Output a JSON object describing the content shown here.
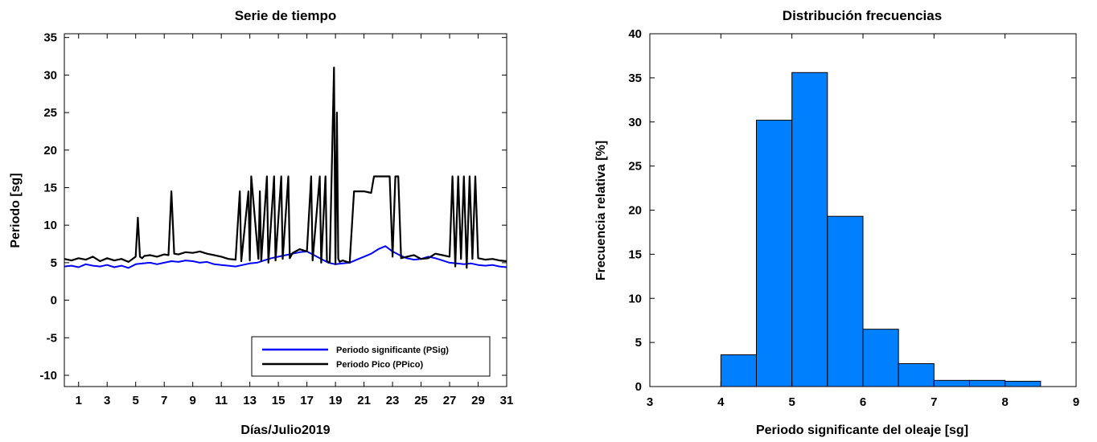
{
  "chart_data": [
    {
      "type": "line",
      "title": "Serie de tiempo",
      "xlabel": "Días/Julio2019",
      "ylabel": "Periodo [sg]",
      "xlim": [
        0,
        31
      ],
      "ylim": [
        -11.5,
        35.5
      ],
      "xticks": [
        1,
        3,
        5,
        7,
        9,
        11,
        13,
        15,
        17,
        19,
        21,
        23,
        25,
        27,
        29,
        31
      ],
      "xtick_labels": [
        "1",
        "3",
        "5",
        "7",
        "9",
        "11",
        "13",
        "15",
        "17",
        "19",
        "21",
        "23",
        "25",
        "27",
        "29",
        "31"
      ],
      "yticks": [
        -10,
        -5,
        0,
        5,
        10,
        15,
        20,
        25,
        30,
        35
      ],
      "ytick_labels": [
        "-10",
        "-5",
        "0",
        "5",
        "10",
        "15",
        "20",
        "25",
        "30",
        "35"
      ],
      "grid": false,
      "legend": "bottom-right",
      "series": [
        {
          "name": "Periodo significante (PSig)",
          "color": "#0000ff",
          "x": [
            0,
            0.5,
            1,
            1.5,
            2,
            2.5,
            3,
            3.5,
            4,
            4.5,
            5,
            5.5,
            6,
            6.5,
            7,
            7.5,
            8,
            8.5,
            9,
            9.5,
            10,
            10.5,
            11,
            11.5,
            12,
            12.5,
            13,
            13.5,
            14,
            14.5,
            15,
            15.5,
            16,
            16.5,
            17,
            17.5,
            18,
            18.5,
            19,
            19.5,
            20,
            20.5,
            21,
            21.5,
            22,
            22.5,
            23,
            23.5,
            24,
            24.5,
            25,
            25.5,
            26,
            26.5,
            27,
            27.5,
            28,
            28.5,
            29,
            29.5,
            30,
            30.5,
            31
          ],
          "y": [
            4.5,
            4.6,
            4.4,
            4.8,
            4.6,
            4.5,
            4.7,
            4.4,
            4.6,
            4.3,
            4.8,
            4.9,
            5.0,
            4.8,
            5.0,
            5.2,
            5.1,
            5.3,
            5.2,
            5.0,
            5.1,
            4.8,
            4.7,
            4.6,
            4.5,
            4.7,
            4.9,
            5.0,
            5.3,
            5.6,
            5.8,
            6.0,
            6.2,
            6.4,
            6.5,
            6.0,
            5.5,
            5.0,
            4.8,
            4.9,
            5.0,
            5.4,
            5.8,
            6.2,
            6.8,
            7.2,
            6.5,
            6.0,
            5.6,
            5.4,
            5.5,
            5.8,
            5.6,
            5.3,
            5.0,
            4.9,
            4.8,
            4.9,
            4.7,
            4.6,
            4.7,
            4.5,
            4.4
          ]
        },
        {
          "name": "Periodo Pico (PPico)",
          "color": "#000000",
          "x": [
            0,
            0.5,
            1,
            1.5,
            2,
            2.5,
            3,
            3.5,
            4,
            4.5,
            5,
            5.15,
            5.3,
            5.45,
            5.6,
            6,
            6.5,
            7,
            7.3,
            7.5,
            7.7,
            8,
            8.5,
            9,
            9.5,
            10,
            10.5,
            11,
            11.5,
            12,
            12.3,
            12.4,
            12.9,
            13.0,
            13.1,
            13.6,
            13.7,
            13.8,
            14.2,
            14.3,
            14.7,
            14.8,
            15.2,
            15.3,
            15.7,
            15.8,
            16,
            16.5,
            17,
            17.3,
            17.4,
            17.9,
            18.0,
            18.3,
            18.4,
            18.6,
            18.9,
            19.0,
            19.1,
            19.2,
            19.3,
            19.5,
            20,
            20.3,
            20.5,
            21,
            21.5,
            21.7,
            22,
            22.5,
            22.8,
            23,
            23.2,
            23.4,
            23.6,
            24,
            24.5,
            25,
            25.5,
            26,
            26.5,
            27,
            27.2,
            27.4,
            27.6,
            27.8,
            28.0,
            28.2,
            28.4,
            28.6,
            28.8,
            29,
            29.5,
            30,
            30.5,
            31
          ],
          "y": [
            5.5,
            5.3,
            5.6,
            5.4,
            5.8,
            5.2,
            5.6,
            5.3,
            5.5,
            5.1,
            5.8,
            11.0,
            5.8,
            5.6,
            5.9,
            6.0,
            5.8,
            6.1,
            6.0,
            14.5,
            6.2,
            6.1,
            6.4,
            6.3,
            6.5,
            6.2,
            6.0,
            5.8,
            5.5,
            5.4,
            14.5,
            5.2,
            14.5,
            5.3,
            16.5,
            5.5,
            14.5,
            5.2,
            16.5,
            5.0,
            16.5,
            5.3,
            16.5,
            5.5,
            16.5,
            5.6,
            6.3,
            6.8,
            6.5,
            16.5,
            5.3,
            16.5,
            5.0,
            16.5,
            5.2,
            5.0,
            31.0,
            4.8,
            25.0,
            5.5,
            5.1,
            5.3,
            5.0,
            14.5,
            14.5,
            14.5,
            14.3,
            16.5,
            16.5,
            16.5,
            16.5,
            5.8,
            16.5,
            16.5,
            5.6,
            5.8,
            6.0,
            5.5,
            5.6,
            6.2,
            6.0,
            5.8,
            16.5,
            4.5,
            16.5,
            5.5,
            16.5,
            4.3,
            16.5,
            5.5,
            16.5,
            5.6,
            5.4,
            5.5,
            5.3,
            5.2
          ]
        }
      ]
    },
    {
      "type": "bar",
      "title": "Distribución frecuencias",
      "xlabel": "Periodo significante del oleaje [sg]",
      "ylabel": "Frecuencia relativa [%]",
      "xlim": [
        3,
        9
      ],
      "ylim": [
        0,
        40
      ],
      "xticks": [
        3,
        4,
        5,
        6,
        7,
        8,
        9
      ],
      "xtick_labels": [
        "3",
        "4",
        "5",
        "6",
        "7",
        "8",
        "9"
      ],
      "yticks": [
        0,
        5,
        10,
        15,
        20,
        25,
        30,
        35,
        40
      ],
      "ytick_labels": [
        "0",
        "5",
        "10",
        "15",
        "20",
        "25",
        "30",
        "35",
        "40"
      ],
      "grid": false,
      "bar_color": "#0080ff",
      "bin_edges": [
        4.0,
        4.5,
        5.0,
        5.5,
        6.0,
        6.5,
        7.0,
        7.5,
        8.0,
        8.5
      ],
      "values": [
        3.6,
        30.2,
        35.6,
        19.3,
        6.5,
        2.6,
        0.7,
        0.7,
        0.6,
        0.2
      ]
    }
  ]
}
